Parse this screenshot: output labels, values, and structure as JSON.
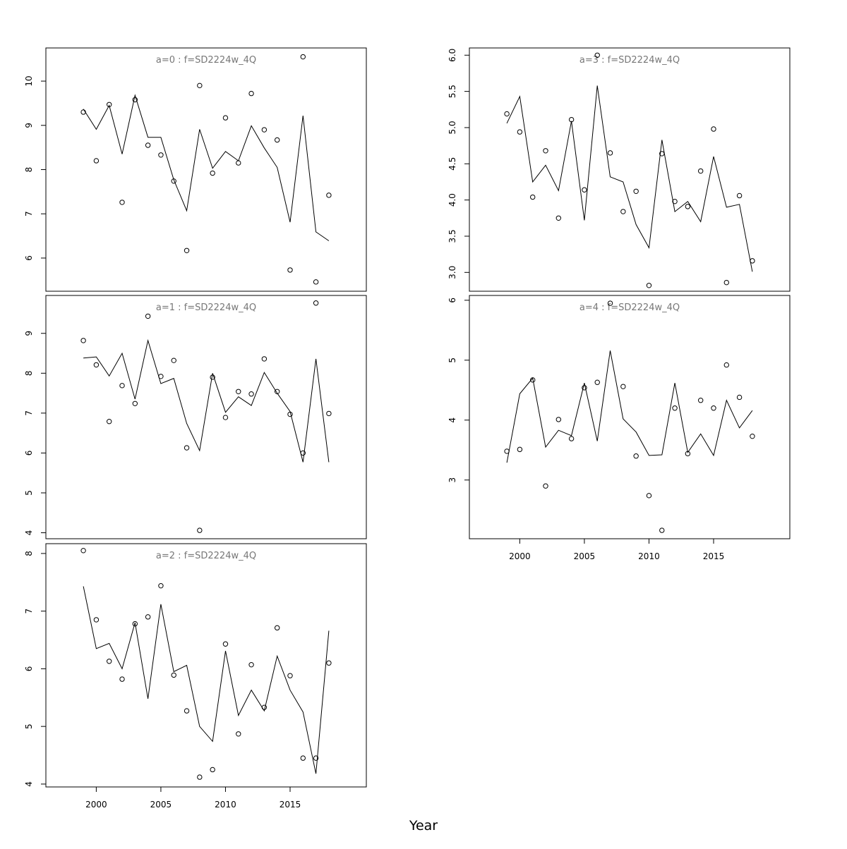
{
  "chart_data": {
    "type": "line",
    "xlabel": "Year",
    "x": [
      1999,
      2000,
      2001,
      2002,
      2003,
      2004,
      2005,
      2006,
      2007,
      2008,
      2009,
      2010,
      2011,
      2012,
      2013,
      2014,
      2015,
      2016,
      2017,
      2018
    ],
    "x_ticks": [
      2000,
      2005,
      2010,
      2015
    ],
    "xlim": [
      1996.1,
      2020.9
    ],
    "panels": [
      {
        "title": "a=0  :  f=SD2224w_4Q",
        "ylim": [
          5.25,
          10.75
        ],
        "y_ticks": [
          6,
          7,
          8,
          9,
          10
        ],
        "observed": [
          9.3,
          8.2,
          9.47,
          7.26,
          9.58,
          8.55,
          8.33,
          7.74,
          6.17,
          9.9,
          7.92,
          9.17,
          8.15,
          9.72,
          8.9,
          8.67,
          5.73,
          10.55,
          5.46,
          7.42
        ],
        "fitted": [
          9.37,
          8.91,
          9.45,
          8.35,
          9.68,
          8.73,
          8.73,
          7.77,
          7.07,
          8.91,
          8.03,
          8.41,
          8.2,
          8.99,
          8.49,
          8.05,
          6.81,
          9.22,
          6.59,
          6.39
        ]
      },
      {
        "title": "a=1  :  f=SD2224w_4Q",
        "ylim": [
          3.85,
          9.95
        ],
        "y_ticks": [
          4,
          5,
          6,
          7,
          8,
          9
        ],
        "observed": [
          8.82,
          8.21,
          6.79,
          7.69,
          7.24,
          9.43,
          7.92,
          8.32,
          6.13,
          4.06,
          7.9,
          6.89,
          7.54,
          7.48,
          8.36,
          7.54,
          6.97,
          6.0,
          9.76,
          6.99
        ],
        "fitted": [
          8.38,
          8.41,
          7.93,
          8.5,
          7.35,
          8.82,
          7.74,
          7.87,
          6.74,
          6.06,
          8.0,
          7.02,
          7.41,
          7.19,
          8.02,
          7.5,
          7.04,
          5.77,
          8.36,
          5.77
        ]
      },
      {
        "title": "a=2  :  f=SD2224w_4Q",
        "ylim": [
          3.95,
          8.17
        ],
        "y_ticks": [
          4,
          5,
          6,
          7,
          8
        ],
        "observed": [
          8.05,
          6.85,
          6.13,
          5.82,
          6.78,
          6.9,
          7.44,
          5.89,
          5.27,
          4.12,
          4.25,
          6.43,
          4.87,
          6.07,
          5.33,
          6.71,
          5.88,
          4.45,
          4.45,
          6.1
        ],
        "fitted": [
          7.43,
          6.35,
          6.44,
          6.0,
          6.8,
          5.48,
          7.12,
          5.95,
          6.06,
          5.0,
          4.74,
          6.31,
          5.19,
          5.63,
          5.27,
          6.22,
          5.63,
          5.25,
          4.18,
          6.66
        ]
      },
      {
        "title": "a=3  :  f=SD2224w_4Q",
        "ylim": [
          2.74,
          6.1
        ],
        "y_ticks": [
          "3.0",
          "3.5",
          "4.0",
          "4.5",
          "5.0",
          "5.5",
          "6.0"
        ],
        "observed": [
          5.19,
          4.94,
          4.04,
          4.68,
          3.75,
          5.11,
          4.14,
          6.0,
          4.65,
          3.84,
          4.12,
          2.82,
          4.64,
          3.98,
          3.91,
          4.4,
          4.98,
          2.86,
          4.06,
          3.16
        ],
        "fitted": [
          5.06,
          5.43,
          4.25,
          4.48,
          4.13,
          5.09,
          3.72,
          5.58,
          4.32,
          4.25,
          3.66,
          3.34,
          4.83,
          3.84,
          3.98,
          3.7,
          4.6,
          3.9,
          3.94,
          3.01
        ]
      },
      {
        "title": "a=4  :  f=SD2224w_4Q",
        "ylim": [
          2.02,
          6.08
        ],
        "y_ticks": [
          3,
          4,
          5,
          6
        ],
        "observed": [
          3.48,
          3.51,
          4.67,
          2.9,
          4.01,
          3.69,
          4.54,
          4.63,
          5.95,
          4.56,
          3.4,
          2.74,
          2.16,
          4.2,
          3.44,
          4.33,
          4.2,
          4.92,
          4.38,
          3.73
        ],
        "fitted": [
          3.29,
          4.44,
          4.7,
          3.55,
          3.83,
          3.74,
          4.62,
          3.65,
          5.16,
          4.02,
          3.8,
          3.41,
          3.42,
          4.62,
          3.46,
          3.77,
          3.41,
          4.33,
          3.87,
          4.16
        ]
      }
    ]
  }
}
